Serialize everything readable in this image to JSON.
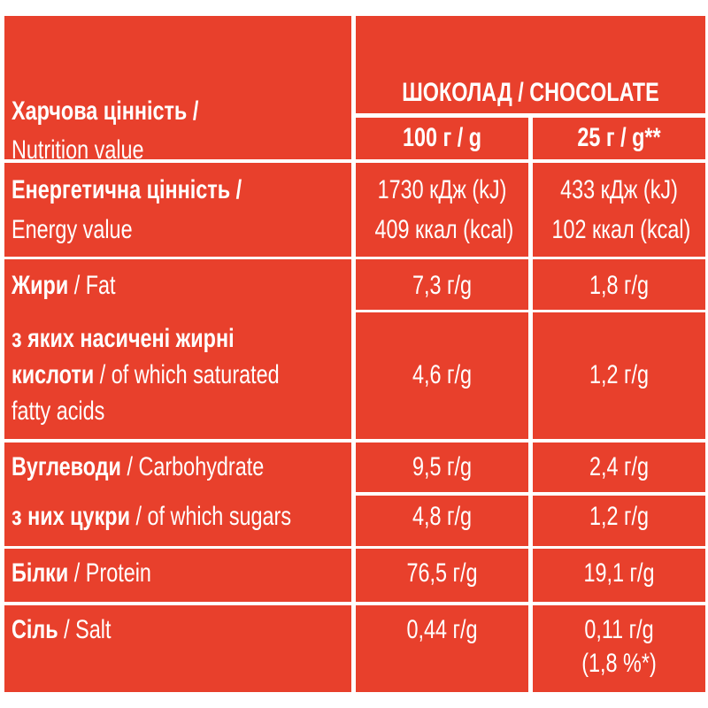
{
  "header": {
    "label_uk": "Харчова цінність /",
    "label_en": "Nutrition value",
    "product": "ШОКОЛАД / CHOCOLATE",
    "col_100": "100 г / g",
    "col_25": "25 г / g**"
  },
  "rows": {
    "energy": {
      "uk": "Енергетична цінність /",
      "en": "Energy value",
      "v100_kj": "1730 кДж (kJ)",
      "v100_kcal": "409 ккал (kcal)",
      "v25_kj": "433 кДж (kJ)",
      "v25_kcal": "102 ккал (kcal)"
    },
    "fat": {
      "uk": "Жири",
      "en": "/ Fat",
      "v100": "7,3 г/g",
      "v25": "1,8 г/g"
    },
    "saturated": {
      "uk1": "з яких насичені жирні",
      "uk2": "кислоти",
      "en1": "/ of which saturated",
      "en2": "fatty acids",
      "v100": "4,6 г/g",
      "v25": "1,2 г/g"
    },
    "carbohydrate": {
      "uk": "Вуглеводи",
      "en": "/ Carbohydrate",
      "v100": "9,5 г/g",
      "v25": "2,4 г/g"
    },
    "sugars": {
      "uk": "з них цукри",
      "en": "/ of which sugars",
      "v100": "4,8 г/g",
      "v25": "1,2 г/g"
    },
    "protein": {
      "uk": "Білки",
      "en": "/ Protein",
      "v100": "76,5 г/g",
      "v25": "19,1 г/g"
    },
    "salt": {
      "uk": "Сіль",
      "en": "/ Salt",
      "v100": "0,44 г/g",
      "v25": "0,11 г/g",
      "v25_note": "(1,8 %*)"
    }
  },
  "colors": {
    "background": "#e8402c",
    "text": "#ffffff",
    "grid": "#ffffff"
  }
}
